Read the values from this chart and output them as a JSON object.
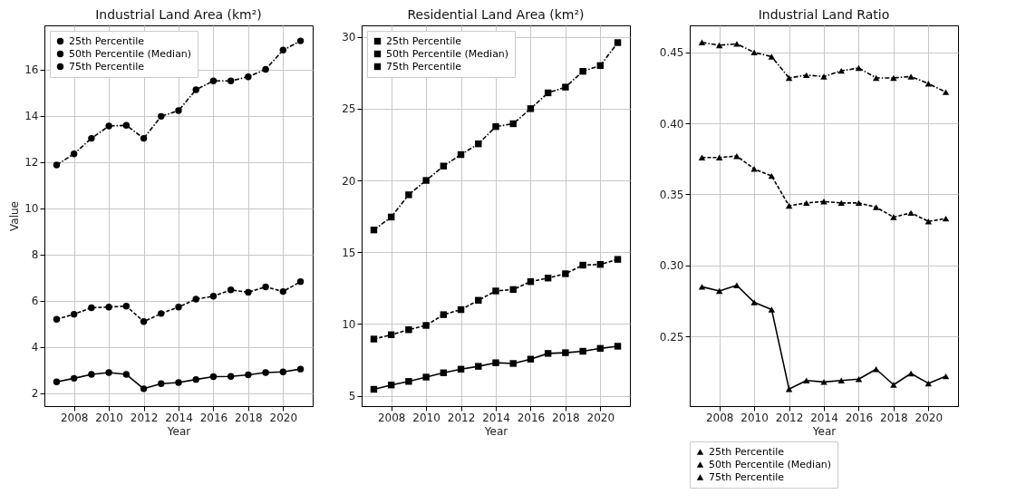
{
  "chart_data": [
    {
      "type": "line",
      "title": "Industrial Land Area (km²)",
      "xlabel": "Year",
      "ylabel": "Value",
      "x": [
        2007,
        2008,
        2009,
        2010,
        2011,
        2012,
        2013,
        2014,
        2015,
        2016,
        2017,
        2018,
        2019,
        2020,
        2021
      ],
      "xlim": [
        2006.3,
        2021.7
      ],
      "xticks": [
        2008,
        2010,
        2012,
        2014,
        2016,
        2018,
        2020
      ],
      "ylim": [
        1.45,
        17.9
      ],
      "yticks": [
        2,
        4,
        6,
        8,
        10,
        12,
        14,
        16
      ],
      "grid": true,
      "legend": "top left",
      "marker": "circle",
      "series": [
        {
          "name": "25th Percentile",
          "color": "#000000",
          "line_style": "solid",
          "values": [
            2.5,
            2.65,
            2.82,
            2.9,
            2.82,
            2.2,
            2.42,
            2.47,
            2.6,
            2.72,
            2.73,
            2.8,
            2.9,
            2.93,
            3.05
          ]
        },
        {
          "name": "50th Percentile (Median)",
          "color": "#000000",
          "line_style": "dashed",
          "values": [
            5.2,
            5.42,
            5.7,
            5.73,
            5.77,
            5.1,
            5.45,
            5.73,
            6.07,
            6.2,
            6.47,
            6.37,
            6.6,
            6.4,
            6.83
          ]
        },
        {
          "name": "75th Percentile",
          "color": "#000000",
          "line_style": "dashdot",
          "values": [
            11.87,
            12.35,
            13.02,
            13.55,
            13.58,
            13.02,
            13.97,
            14.22,
            15.12,
            15.5,
            15.5,
            15.68,
            16.0,
            16.83,
            17.23
          ]
        }
      ]
    },
    {
      "type": "line",
      "title": "Residential Land Area (km²)",
      "xlabel": "Year",
      "x": [
        2007,
        2008,
        2009,
        2010,
        2011,
        2012,
        2013,
        2014,
        2015,
        2016,
        2017,
        2018,
        2019,
        2020,
        2021
      ],
      "xlim": [
        2006.3,
        2021.7
      ],
      "xticks": [
        2008,
        2010,
        2012,
        2014,
        2016,
        2018,
        2020
      ],
      "ylim": [
        4.28,
        30.8
      ],
      "yticks": [
        5,
        10,
        15,
        20,
        25,
        30
      ],
      "grid": true,
      "legend": "top left",
      "marker": "square",
      "series": [
        {
          "name": "25th Percentile",
          "color": "#000000",
          "line_style": "solid",
          "values": [
            5.45,
            5.75,
            6.0,
            6.3,
            6.6,
            6.85,
            7.05,
            7.3,
            7.25,
            7.55,
            7.95,
            8.0,
            8.1,
            8.3,
            8.45
          ]
        },
        {
          "name": "50th Percentile (Median)",
          "color": "#000000",
          "line_style": "dashed",
          "values": [
            8.95,
            9.25,
            9.6,
            9.9,
            10.65,
            11.0,
            11.65,
            12.3,
            12.4,
            12.95,
            13.2,
            13.5,
            14.1,
            14.15,
            14.5
          ]
        },
        {
          "name": "75th Percentile",
          "color": "#000000",
          "line_style": "dashdot",
          "values": [
            16.55,
            17.45,
            19.0,
            20.0,
            21.0,
            21.8,
            22.55,
            23.75,
            23.95,
            25.0,
            26.1,
            26.5,
            27.6,
            28.0,
            29.6
          ]
        }
      ]
    },
    {
      "type": "line",
      "title": "Industrial Land Ratio",
      "xlabel": "Year",
      "x": [
        2007,
        2008,
        2009,
        2010,
        2011,
        2012,
        2013,
        2014,
        2015,
        2016,
        2017,
        2018,
        2019,
        2020,
        2021
      ],
      "xlim": [
        2006.3,
        2021.7
      ],
      "xticks": [
        2008,
        2010,
        2012,
        2014,
        2016,
        2018,
        2020
      ],
      "ylim": [
        0.201,
        0.469
      ],
      "yticks": [
        {
          "value": 0.25,
          "label": "0.25"
        },
        {
          "value": 0.3,
          "label": "0.30"
        },
        {
          "value": 0.35,
          "label": "0.35"
        },
        {
          "value": 0.4,
          "label": "0.40"
        },
        {
          "value": 0.45,
          "label": "0.45"
        }
      ],
      "grid": true,
      "legend": "bottom",
      "marker": "triangle",
      "series": [
        {
          "name": "25th Percentile",
          "color": "#000000",
          "line_style": "solid",
          "values": [
            0.285,
            0.282,
            0.286,
            0.274,
            0.269,
            0.213,
            0.219,
            0.218,
            0.219,
            0.22,
            0.227,
            0.216,
            0.224,
            0.217,
            0.222
          ]
        },
        {
          "name": "50th Percentile (Median)",
          "color": "#000000",
          "line_style": "dashed",
          "values": [
            0.376,
            0.376,
            0.377,
            0.368,
            0.363,
            0.342,
            0.344,
            0.345,
            0.344,
            0.344,
            0.341,
            0.334,
            0.337,
            0.331,
            0.333
          ]
        },
        {
          "name": "75th Percentile",
          "color": "#000000",
          "line_style": "dashdot",
          "values": [
            0.457,
            0.455,
            0.456,
            0.45,
            0.447,
            0.432,
            0.434,
            0.433,
            0.437,
            0.439,
            0.432,
            0.432,
            0.433,
            0.428,
            0.422
          ]
        }
      ]
    }
  ]
}
